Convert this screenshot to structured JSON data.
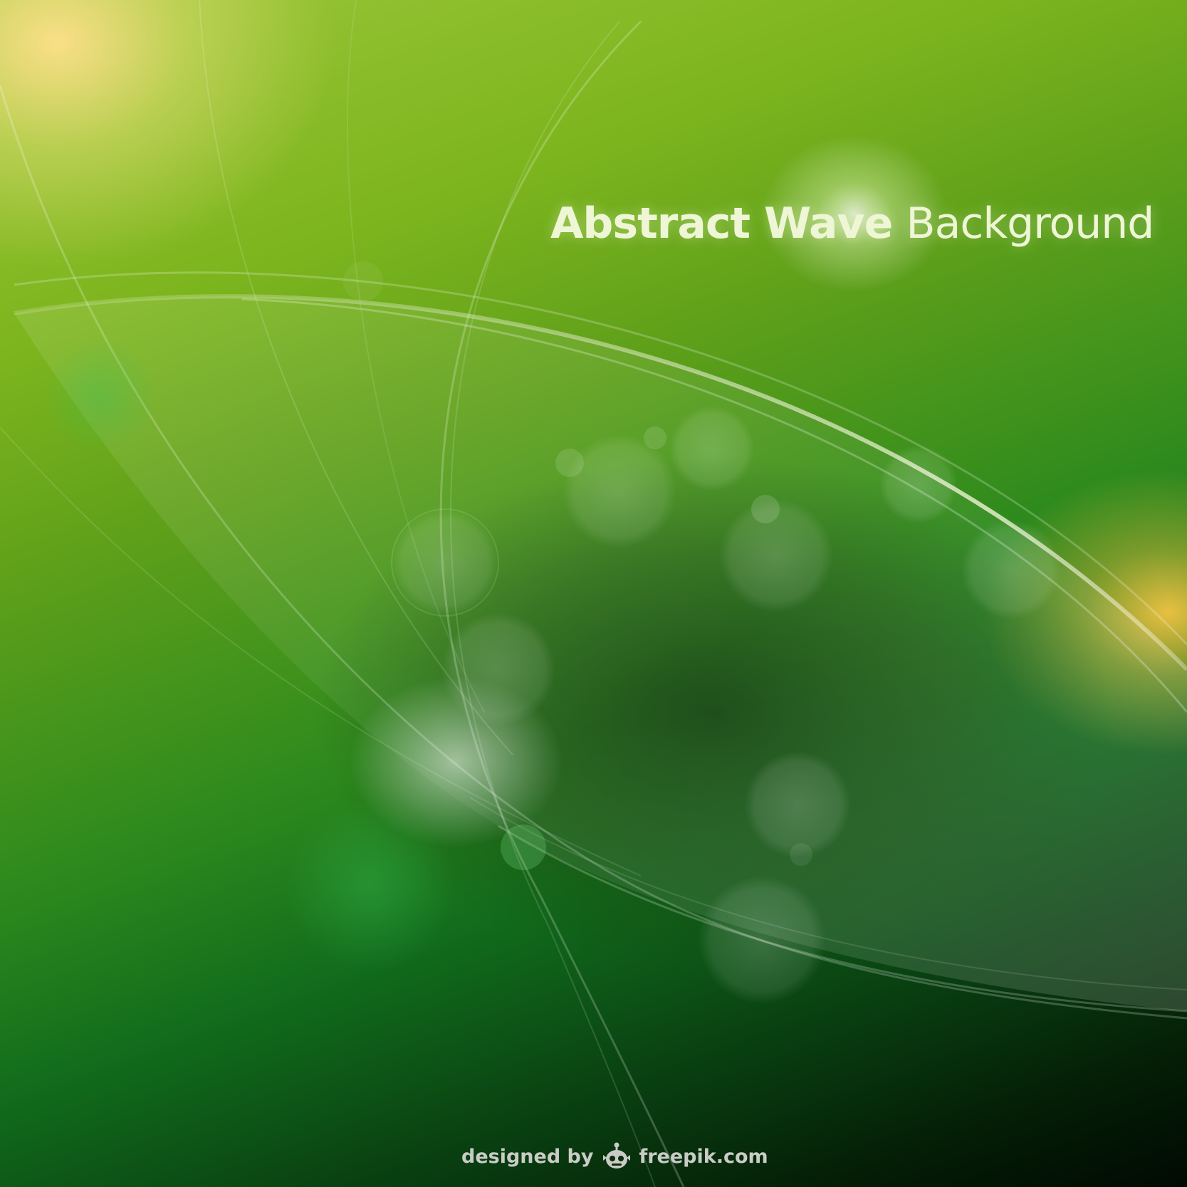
{
  "title": {
    "bold": "Abstract Wave",
    "light": "Background"
  },
  "credit": {
    "prefix": "designed by",
    "brand": "freepik.com",
    "logo_icon": "freepik-logo-icon"
  },
  "colors": {
    "top_green": "#9cc63a",
    "mid_green": "#2e8a1d",
    "bottom_dark": "#010a02",
    "glow_yellow": "#ffe08c",
    "text": "#eef6d6"
  }
}
